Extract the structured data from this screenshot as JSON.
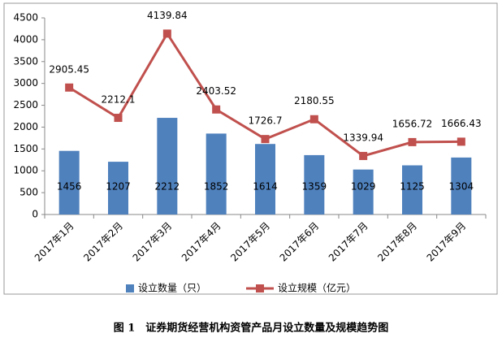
{
  "chart_data": {
    "type": "bar_line",
    "title": "图 1　证券期货经营机构资管产品月设立数量及规模趋势图",
    "categories": [
      "2017年1月",
      "2017年2月",
      "2017年3月",
      "2017年4月",
      "2017年5月",
      "2017年6月",
      "2017年7月",
      "2017年8月",
      "2017年9月"
    ],
    "series": [
      {
        "name": "设立数量（只）",
        "type": "bar",
        "color": "#4f81bd",
        "values": [
          1456,
          1207,
          2212,
          1852,
          1614,
          1359,
          1029,
          1125,
          1304
        ]
      },
      {
        "name": "设立规模（亿元）",
        "type": "line",
        "color": "#c0504d",
        "values": [
          2905.45,
          2212.1,
          4139.84,
          2403.52,
          1726.7,
          2180.55,
          1339.94,
          1656.72,
          1666.43
        ]
      }
    ],
    "ylim": [
      0,
      4500
    ],
    "yticks": [
      0,
      500,
      1000,
      1500,
      2000,
      2500,
      3000,
      3500,
      4000,
      4500
    ],
    "grid": false,
    "legend": "bottom"
  }
}
